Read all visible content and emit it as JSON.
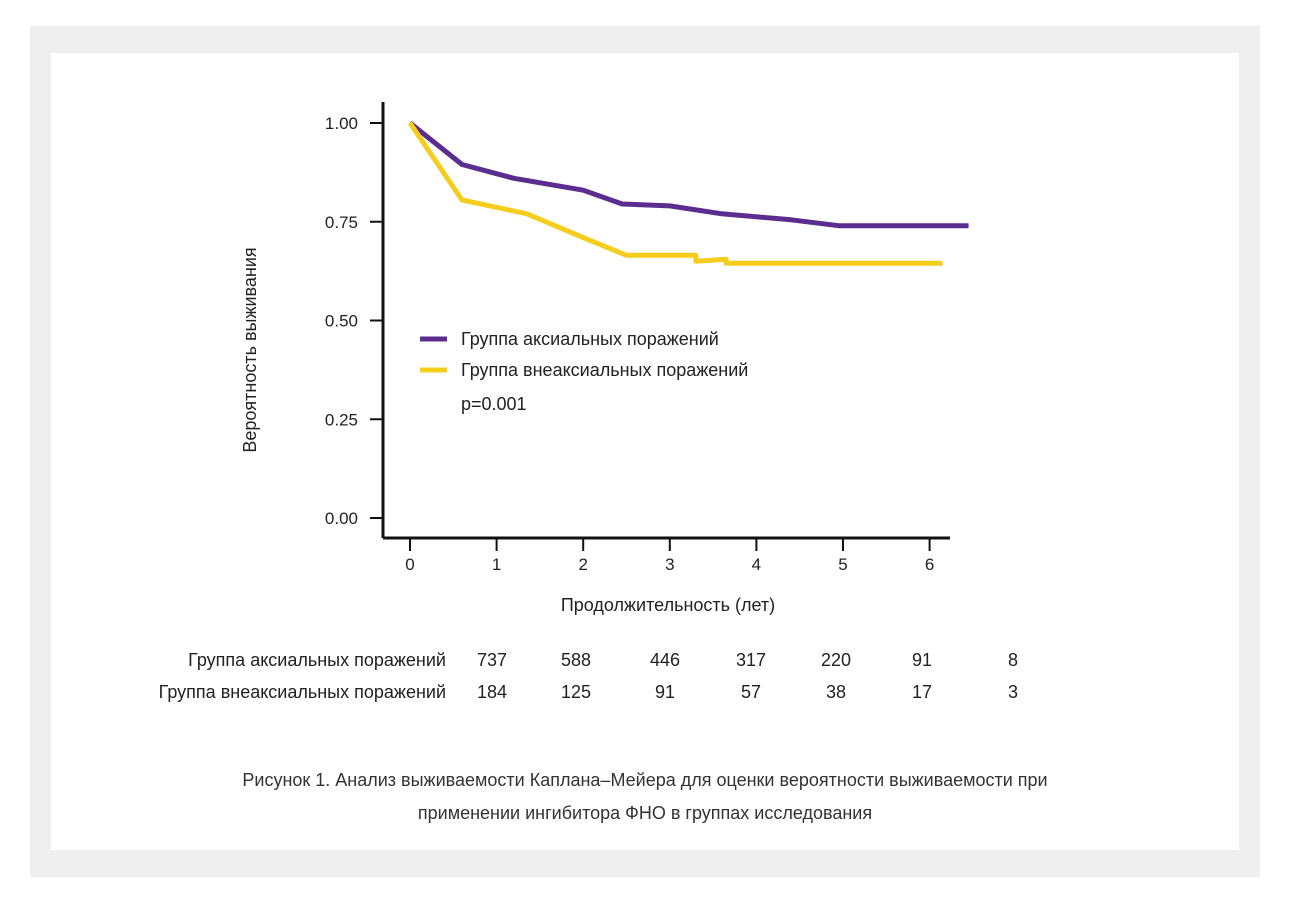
{
  "chart_data": {
    "type": "line",
    "subtype": "kaplan-meier",
    "xlabel": "Продолжительность (лет)",
    "ylabel": "Вероятность выживания",
    "xlim": [
      -0.3,
      6.2
    ],
    "ylim": [
      -0.05,
      1.05
    ],
    "x_ticks": [
      0,
      1,
      2,
      3,
      4,
      5,
      6
    ],
    "y_ticks": [
      0.0,
      0.25,
      0.5,
      0.75,
      1.0
    ],
    "y_tick_labels": [
      "0.00",
      "0.25",
      "0.50",
      "0.75",
      "1.00"
    ],
    "series": [
      {
        "name": "Группа аксиальных поражений",
        "color": "#5b2d8e",
        "points": [
          [
            0,
            1.0
          ],
          [
            0.6,
            0.895
          ],
          [
            1.2,
            0.86
          ],
          [
            2.0,
            0.83
          ],
          [
            2.45,
            0.795
          ],
          [
            3.0,
            0.79
          ],
          [
            3.6,
            0.77
          ],
          [
            4.4,
            0.755
          ],
          [
            4.95,
            0.74
          ],
          [
            6.45,
            0.74
          ]
        ]
      },
      {
        "name": "Группа внеаксиальных поражений",
        "color": "#f5cd1c",
        "points": [
          [
            0,
            1.0
          ],
          [
            0.6,
            0.805
          ],
          [
            1.35,
            0.77
          ],
          [
            2.0,
            0.71
          ],
          [
            2.5,
            0.665
          ],
          [
            3.3,
            0.665
          ],
          [
            3.3,
            0.65
          ],
          [
            3.65,
            0.655
          ],
          [
            3.65,
            0.645
          ],
          [
            6.15,
            0.645
          ]
        ]
      }
    ],
    "annotation": "p=0.001",
    "legend_position": "center"
  },
  "risk_table": {
    "rows": [
      {
        "label": "Группа аксиальных поражений",
        "values": [
          "737",
          "588",
          "446",
          "317",
          "220",
          "91",
          "8"
        ]
      },
      {
        "label": "Группа внеаксиальных поражений",
        "values": [
          "184",
          "125",
          "91",
          "57",
          "38",
          "17",
          "3"
        ]
      }
    ]
  },
  "caption": {
    "line1": "Рисунок 1. Анализ выживаемости Каплана–Мейера для оценки вероятности выживаемости при",
    "line2": "применении ингибитора ФНО в группах исследования"
  }
}
